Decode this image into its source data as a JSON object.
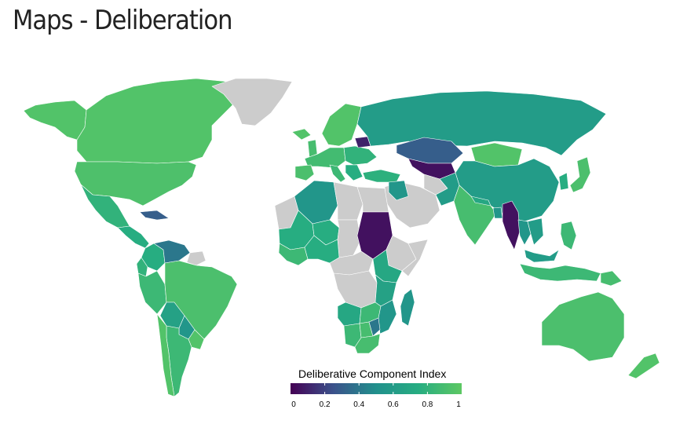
{
  "page": {
    "title": "Maps - Deliberation"
  },
  "legend": {
    "title": "Deliberative Component Index",
    "ticks": [
      "0",
      "0.2",
      "0.4",
      "0.6",
      "0.8",
      "1"
    ],
    "range": [
      0,
      1
    ]
  },
  "colors": {
    "nodata": "#cccccc",
    "border": "#ffffff",
    "scale": [
      "#440154",
      "#3b528b",
      "#21908c",
      "#27ad81",
      "#5dc863"
    ]
  },
  "regions": [
    {
      "name": "Alaska",
      "value": 0.95
    },
    {
      "name": "Canada",
      "value": 0.95
    },
    {
      "name": "Greenland",
      "value": null
    },
    {
      "name": "United States",
      "value": 0.93
    },
    {
      "name": "Mexico",
      "value": 0.8
    },
    {
      "name": "Central America",
      "value": 0.75
    },
    {
      "name": "Cuba",
      "value": 0.3
    },
    {
      "name": "Colombia",
      "value": 0.75
    },
    {
      "name": "Venezuela",
      "value": 0.4
    },
    {
      "name": "Guianas",
      "value": null
    },
    {
      "name": "Ecuador",
      "value": 0.8
    },
    {
      "name": "Peru",
      "value": 0.85
    },
    {
      "name": "Brazil",
      "value": 0.92
    },
    {
      "name": "Bolivia",
      "value": 0.65
    },
    {
      "name": "Paraguay",
      "value": 0.55
    },
    {
      "name": "Uruguay",
      "value": 0.95
    },
    {
      "name": "Argentina",
      "value": 0.85
    },
    {
      "name": "Chile",
      "value": 0.95
    },
    {
      "name": "Iceland",
      "value": 0.95
    },
    {
      "name": "Scandinavia",
      "value": 0.95
    },
    {
      "name": "United Kingdom",
      "value": 0.9
    },
    {
      "name": "Western Europe",
      "value": 0.88
    },
    {
      "name": "Spain",
      "value": 0.92
    },
    {
      "name": "Italy",
      "value": 0.85
    },
    {
      "name": "Eastern Europe",
      "value": 0.8
    },
    {
      "name": "Belarus",
      "value": 0.1
    },
    {
      "name": "Balkans",
      "value": 0.75
    },
    {
      "name": "Turkey",
      "value": 0.78
    },
    {
      "name": "Russia",
      "value": 0.6
    },
    {
      "name": "Kazakhstan",
      "value": 0.3
    },
    {
      "name": "Central Asia",
      "value": 0.05
    },
    {
      "name": "Mongolia",
      "value": 0.95
    },
    {
      "name": "China",
      "value": 0.6
    },
    {
      "name": "Korea",
      "value": 0.75
    },
    {
      "name": "Japan",
      "value": 0.92
    },
    {
      "name": "Middle East",
      "value": null
    },
    {
      "name": "Iraq",
      "value": 0.55
    },
    {
      "name": "Afghanistan",
      "value": null
    },
    {
      "name": "Pakistan",
      "value": 0.6
    },
    {
      "name": "India",
      "value": 0.9
    },
    {
      "name": "Nepal",
      "value": 0.7
    },
    {
      "name": "Bangladesh",
      "value": 0.55
    },
    {
      "name": "Myanmar",
      "value": 0.05
    },
    {
      "name": "Thailand",
      "value": 0.55
    },
    {
      "name": "Vietnam",
      "value": 0.6
    },
    {
      "name": "Malaysia",
      "value": 0.6
    },
    {
      "name": "Indonesia",
      "value": 0.85
    },
    {
      "name": "Philippines",
      "value": 0.85
    },
    {
      "name": "Papua New Guinea",
      "value": 0.9
    },
    {
      "name": "Australia",
      "value": 0.92
    },
    {
      "name": "New Zealand",
      "value": 0.95
    },
    {
      "name": "Morocco",
      "value": null
    },
    {
      "name": "Algeria",
      "value": 0.55
    },
    {
      "name": "Libya",
      "value": null
    },
    {
      "name": "Egypt",
      "value": null
    },
    {
      "name": "Mali",
      "value": 0.75
    },
    {
      "name": "Niger",
      "value": 0.75
    },
    {
      "name": "Chad",
      "value": null
    },
    {
      "name": "Sudan",
      "value": 0.05
    },
    {
      "name": "Ethiopia",
      "value": null
    },
    {
      "name": "Somalia",
      "value": null
    },
    {
      "name": "West Africa",
      "value": 0.85
    },
    {
      "name": "Nigeria",
      "value": 0.75
    },
    {
      "name": "Central Africa",
      "value": null
    },
    {
      "name": "DR Congo",
      "value": null
    },
    {
      "name": "Kenya",
      "value": 0.7
    },
    {
      "name": "Tanzania",
      "value": 0.65
    },
    {
      "name": "Angola",
      "value": 0.7
    },
    {
      "name": "Zambia",
      "value": 0.85
    },
    {
      "name": "Mozambique",
      "value": 0.55
    },
    {
      "name": "Namibia",
      "value": 0.85
    },
    {
      "name": "Botswana",
      "value": 0.9
    },
    {
      "name": "South Africa",
      "value": 0.9
    },
    {
      "name": "Zimbabwe",
      "value": 0.4
    },
    {
      "name": "Madagascar",
      "value": 0.55
    }
  ]
}
